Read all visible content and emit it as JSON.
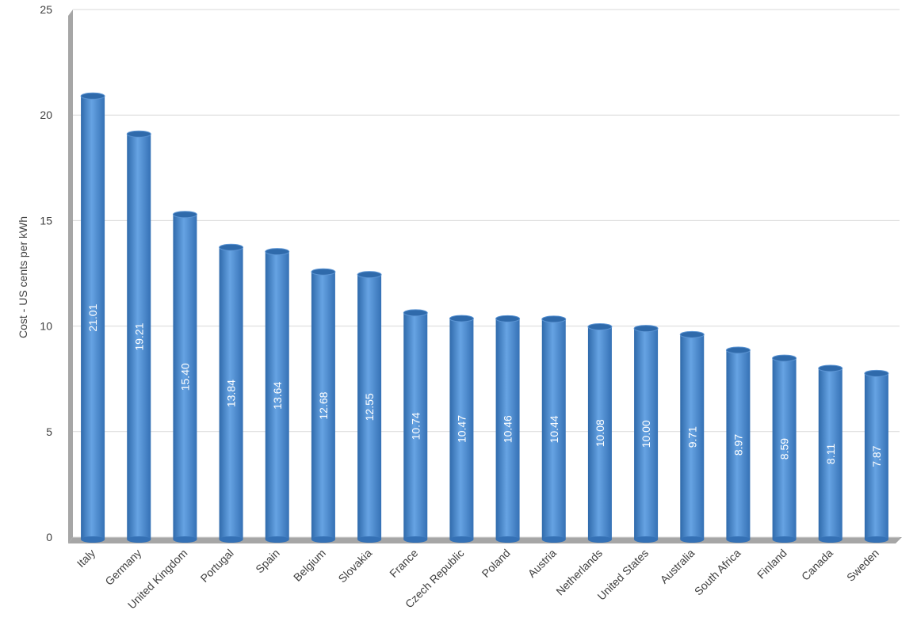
{
  "chart_data": {
    "type": "bar",
    "y_label": "Cost - US cents per kWh",
    "categories": [
      "Italy",
      "Germany",
      "United Kingdom",
      "Portugal",
      "Spain",
      "Belgium",
      "Slovakia",
      "France",
      "Czech Republic",
      "Poland",
      "Austria",
      "Netherlands",
      "United States",
      "Australia",
      "South Africa",
      "Finland",
      "Canada",
      "Sweden"
    ],
    "values": [
      21.01,
      19.21,
      15.4,
      13.84,
      13.64,
      12.68,
      12.55,
      10.74,
      10.47,
      10.46,
      10.44,
      10.08,
      10.0,
      9.71,
      8.97,
      8.59,
      8.11,
      7.87
    ],
    "value_labels": [
      "21.01",
      "19.21",
      "15.40",
      "13.84",
      "13.64",
      "12.68",
      "12.55",
      "10.74",
      "10.47",
      "10.46",
      "10.44",
      "10.08",
      "10.00",
      "9.71",
      "8.97",
      "8.59",
      "8.11",
      "7.87"
    ],
    "color": "#4a8bd2",
    "ylim": [
      0,
      25
    ],
    "yticks": [
      0,
      5,
      10,
      15,
      20,
      25
    ],
    "grid": true
  }
}
